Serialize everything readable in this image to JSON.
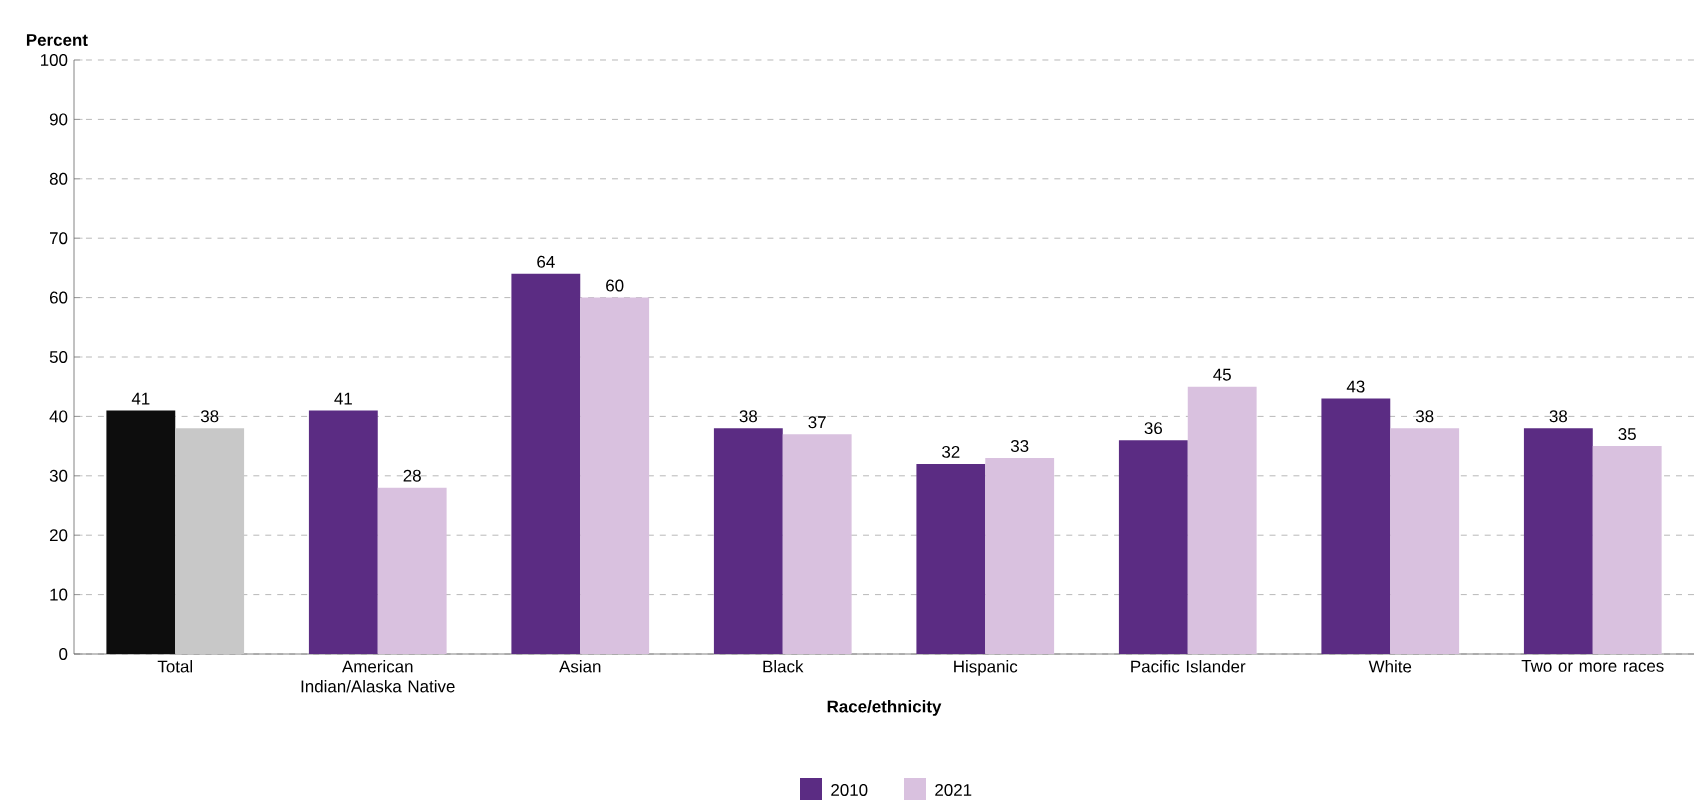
{
  "chart_data": {
    "type": "bar",
    "xlabel": "Race/ethnicity",
    "ylabel": "Percent",
    "categories": [
      "Total",
      "American Indian/Alaska Native",
      "Asian",
      "Black",
      "Hispanic",
      "Pacific Islander",
      "White",
      "Two or more races"
    ],
    "series": [
      {
        "name": "2010",
        "color": "#5b2c83",
        "colors": [
          "#0d0d0d",
          "#5b2c83",
          "#5b2c83",
          "#5b2c83",
          "#5b2c83",
          "#5b2c83",
          "#5b2c83",
          "#5b2c83"
        ],
        "values": [
          41,
          41,
          64,
          38,
          32,
          36,
          43,
          38
        ]
      },
      {
        "name": "2021",
        "color": "#d9c1df",
        "colors": [
          "#c8c8c8",
          "#d9c1df",
          "#d9c1df",
          "#d9c1df",
          "#d9c1df",
          "#d9c1df",
          "#d9c1df",
          "#d9c1df"
        ],
        "values": [
          38,
          28,
          60,
          37,
          33,
          45,
          38,
          35
        ]
      }
    ],
    "ylim": [
      0,
      100
    ],
    "yticks": [
      0,
      10,
      20,
      30,
      40,
      50,
      60,
      70,
      80,
      90,
      100
    ],
    "grid": "y",
    "data_labels": true,
    "legend": "bottom"
  }
}
